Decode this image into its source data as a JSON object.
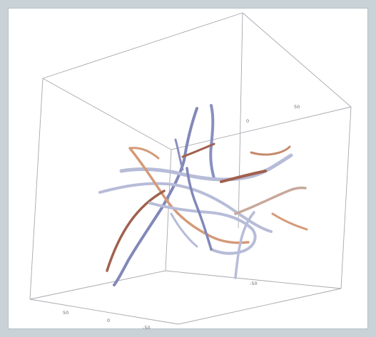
{
  "figure": {
    "type": "3d-vector-field-tubes",
    "colors": {
      "frame_bg": "#c9d3d7",
      "panel_bg": "#ffffff",
      "box_edge": "#a8a8b0",
      "strand_blue": "#8288b8",
      "strand_lavender": "#b7bcd8",
      "strand_orange": "#d49a78",
      "strand_brown": "#a0604e"
    },
    "axis_ticks": {
      "top": [
        "0",
        "50"
      ],
      "middle": [
        "-50"
      ],
      "bottom": [
        "50",
        "0",
        "-50"
      ]
    }
  }
}
